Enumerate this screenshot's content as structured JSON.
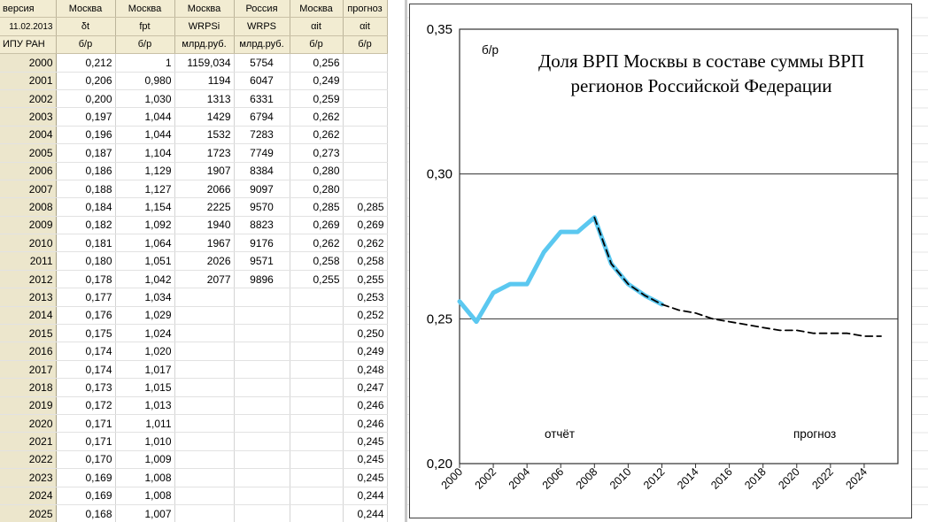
{
  "table": {
    "header_rows": [
      [
        "версия",
        "Москва",
        "Москва",
        "Москва",
        "Россия",
        "Москва",
        "прогноз"
      ],
      [
        "11.02.2013",
        "δt",
        "fpt",
        "WRPSi",
        "WRPS",
        "αit",
        "αit"
      ],
      [
        "ИПУ РАН",
        "б/р",
        "б/р",
        "млрд.руб.",
        "млрд.руб.",
        "б/р",
        "б/р"
      ]
    ],
    "rows": [
      [
        "2000",
        "0,212",
        "1",
        "1159,034",
        "5754",
        "0,256",
        ""
      ],
      [
        "2001",
        "0,206",
        "0,980",
        "1194",
        "6047",
        "0,249",
        ""
      ],
      [
        "2002",
        "0,200",
        "1,030",
        "1313",
        "6331",
        "0,259",
        ""
      ],
      [
        "2003",
        "0,197",
        "1,044",
        "1429",
        "6794",
        "0,262",
        ""
      ],
      [
        "2004",
        "0,196",
        "1,044",
        "1532",
        "7283",
        "0,262",
        ""
      ],
      [
        "2005",
        "0,187",
        "1,104",
        "1723",
        "7749",
        "0,273",
        ""
      ],
      [
        "2006",
        "0,186",
        "1,129",
        "1907",
        "8384",
        "0,280",
        ""
      ],
      [
        "2007",
        "0,188",
        "1,127",
        "2066",
        "9097",
        "0,280",
        ""
      ],
      [
        "2008",
        "0,184",
        "1,154",
        "2225",
        "9570",
        "0,285",
        "0,285"
      ],
      [
        "2009",
        "0,182",
        "1,092",
        "1940",
        "8823",
        "0,269",
        "0,269"
      ],
      [
        "2010",
        "0,181",
        "1,064",
        "1967",
        "9176",
        "0,262",
        "0,262"
      ],
      [
        "2011",
        "0,180",
        "1,051",
        "2026",
        "9571",
        "0,258",
        "0,258"
      ],
      [
        "2012",
        "0,178",
        "1,042",
        "2077",
        "9896",
        "0,255",
        "0,255"
      ],
      [
        "2013",
        "0,177",
        "1,034",
        "",
        "",
        "",
        "0,253"
      ],
      [
        "2014",
        "0,176",
        "1,029",
        "",
        "",
        "",
        "0,252"
      ],
      [
        "2015",
        "0,175",
        "1,024",
        "",
        "",
        "",
        "0,250"
      ],
      [
        "2016",
        "0,174",
        "1,020",
        "",
        "",
        "",
        "0,249"
      ],
      [
        "2017",
        "0,174",
        "1,017",
        "",
        "",
        "",
        "0,248"
      ],
      [
        "2018",
        "0,173",
        "1,015",
        "",
        "",
        "",
        "0,247"
      ],
      [
        "2019",
        "0,172",
        "1,013",
        "",
        "",
        "",
        "0,246"
      ],
      [
        "2020",
        "0,171",
        "1,011",
        "",
        "",
        "",
        "0,246"
      ],
      [
        "2021",
        "0,171",
        "1,010",
        "",
        "",
        "",
        "0,245"
      ],
      [
        "2022",
        "0,170",
        "1,009",
        "",
        "",
        "",
        "0,245"
      ],
      [
        "2023",
        "0,169",
        "1,008",
        "",
        "",
        "",
        "0,245"
      ],
      [
        "2024",
        "0,169",
        "1,008",
        "",
        "",
        "",
        "0,244"
      ],
      [
        "2025",
        "0,168",
        "1,007",
        "",
        "",
        "",
        "0,244"
      ]
    ]
  },
  "chart_data": {
    "type": "line",
    "title_lines": [
      "Доля  ВРП Москвы в составе  суммы ВРП",
      "регионов Российской Федерации"
    ],
    "ylabel": "б/р",
    "ylim": [
      0.2,
      0.35
    ],
    "yticks": [
      0.2,
      0.25,
      0.3,
      0.35
    ],
    "ytick_labels": [
      "0,20",
      "0,25",
      "0,30",
      "0,35"
    ],
    "gridlines_y": [
      0.25,
      0.3
    ],
    "xlim": [
      2000,
      2026
    ],
    "xticks": [
      2000,
      2002,
      2004,
      2006,
      2008,
      2010,
      2012,
      2014,
      2016,
      2018,
      2020,
      2022,
      2024
    ],
    "annotations": [
      "отчёт",
      "прогноз"
    ],
    "series": [
      {
        "style": "solid",
        "color": "#5bc8f0",
        "x": [
          2000,
          2001,
          2002,
          2003,
          2004,
          2005,
          2006,
          2007,
          2008,
          2009,
          2010,
          2011,
          2012
        ],
        "y": [
          0.256,
          0.249,
          0.259,
          0.262,
          0.262,
          0.273,
          0.28,
          0.28,
          0.285,
          0.269,
          0.262,
          0.258,
          0.255
        ]
      },
      {
        "style": "dashed",
        "color": "#000000",
        "x": [
          2008,
          2009,
          2010,
          2011,
          2012,
          2013,
          2014,
          2015,
          2016,
          2017,
          2018,
          2019,
          2020,
          2021,
          2022,
          2023,
          2024,
          2025
        ],
        "y": [
          0.285,
          0.269,
          0.262,
          0.258,
          0.255,
          0.253,
          0.252,
          0.25,
          0.249,
          0.248,
          0.247,
          0.246,
          0.246,
          0.245,
          0.245,
          0.245,
          0.244,
          0.244
        ]
      }
    ]
  }
}
